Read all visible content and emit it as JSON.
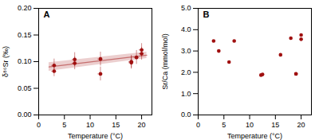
{
  "chart_data": [
    {
      "type": "scatter",
      "title": "A",
      "x": [
        3,
        3,
        7,
        7,
        12,
        12,
        18,
        18,
        19,
        20,
        20
      ],
      "y": [
        0.093,
        0.082,
        0.104,
        0.097,
        0.105,
        0.077,
        0.1,
        0.098,
        0.108,
        0.115,
        0.122
      ],
      "xerr": [
        0.5,
        0.5,
        0.5,
        0.5,
        0.5,
        0.5,
        0.5,
        0.5,
        0.5,
        0.5,
        0.5
      ],
      "yerr": [
        0.012,
        0.01,
        0.013,
        0.012,
        0.013,
        0.013,
        0.012,
        0.012,
        0.013,
        0.012,
        0.012
      ],
      "fit_x": [
        2,
        21
      ],
      "fit_y": [
        0.09,
        0.112
      ],
      "fit_ci_low": [
        0.082,
        0.106
      ],
      "fit_ci_high": [
        0.098,
        0.118
      ],
      "xlabel": "Temperature (°C)",
      "ylabel": "δ⁸⁶Sr (‰)",
      "xlim": [
        0,
        22
      ],
      "ylim": [
        0.0,
        0.2
      ],
      "xticks": [
        0,
        5,
        10,
        15,
        20
      ],
      "yticks": [
        {
          "value": 0.0,
          "label": "0.00"
        },
        0.05,
        {
          "value": 0.1,
          "label": "0.10"
        },
        0.15,
        {
          "value": 0.2,
          "label": "0.20"
        }
      ],
      "color": "#a01010"
    },
    {
      "type": "scatter",
      "title": "B",
      "x": [
        3,
        4,
        6,
        7,
        12.2,
        12.5,
        16,
        18,
        19,
        19,
        20,
        20
      ],
      "y": [
        3.47,
        3.0,
        2.48,
        3.47,
        1.87,
        1.9,
        2.82,
        3.6,
        1.92,
        1.93,
        3.75,
        3.55
      ],
      "xlabel": "Temperature (°C)",
      "ylabel": "Sr/Ca (mmol/mol)",
      "xlim": [
        0,
        22
      ],
      "ylim": [
        0.0,
        5.0
      ],
      "xticks": [
        0,
        5,
        10,
        15,
        20
      ],
      "yticks": [
        {
          "value": 0.0,
          "label": "0.0"
        },
        {
          "value": 1.0,
          "label": "1.0"
        },
        {
          "value": 2.0,
          "label": "2.0"
        },
        {
          "value": 3.0,
          "label": "3.0"
        },
        {
          "value": 4.0,
          "label": "4.0"
        },
        {
          "value": 5.0,
          "label": "5.0"
        }
      ],
      "color": "#a01010"
    }
  ]
}
